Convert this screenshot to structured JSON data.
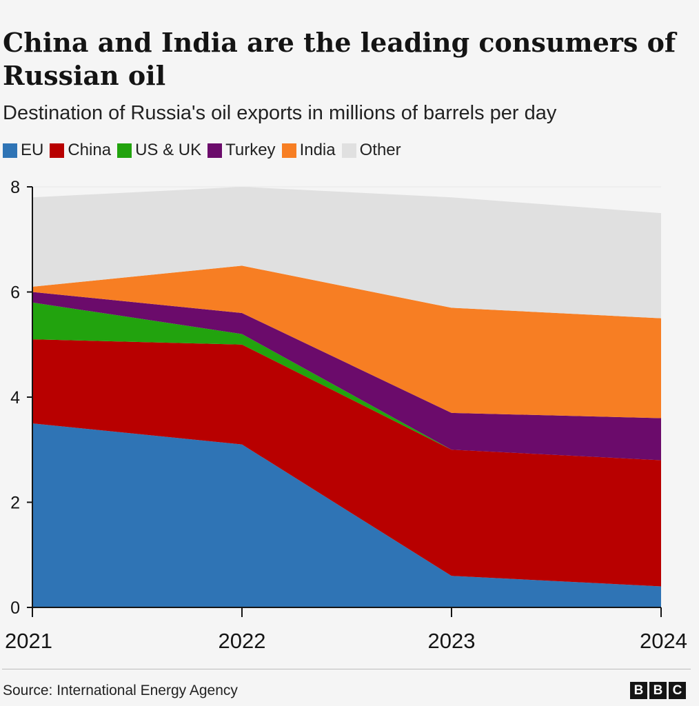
{
  "header": {
    "title": "China and India are the leading consumers of Russian oil",
    "subtitle": "Destination of Russia's oil exports in millions of barrels per day"
  },
  "legend": [
    {
      "label": "EU",
      "color": "#2f74b5"
    },
    {
      "label": "China",
      "color": "#b80000"
    },
    {
      "label": "US & UK",
      "color": "#22a30e"
    },
    {
      "label": "Turkey",
      "color": "#6b0b6b"
    },
    {
      "label": "India",
      "color": "#f77e23"
    },
    {
      "label": "Other",
      "color": "#e0e0e0"
    }
  ],
  "chart_data": {
    "type": "area",
    "stacked": true,
    "title": "China and India are the leading consumers of Russian oil",
    "subtitle": "Destination of Russia's oil exports in millions of barrels per day",
    "x": [
      "2021",
      "2022",
      "2023",
      "2024"
    ],
    "series": [
      {
        "name": "EU",
        "color": "#2f74b5",
        "values": [
          3.5,
          3.1,
          0.6,
          0.4
        ]
      },
      {
        "name": "China",
        "color": "#b80000",
        "values": [
          1.6,
          1.9,
          2.4,
          2.4
        ]
      },
      {
        "name": "US & UK",
        "color": "#22a30e",
        "values": [
          0.7,
          0.2,
          0.0,
          0.0
        ]
      },
      {
        "name": "Turkey",
        "color": "#6b0b6b",
        "values": [
          0.2,
          0.4,
          0.7,
          0.8
        ]
      },
      {
        "name": "India",
        "color": "#f77e23",
        "values": [
          0.1,
          0.9,
          2.0,
          1.9
        ]
      },
      {
        "name": "Other",
        "color": "#e0e0e0",
        "values": [
          1.7,
          1.5,
          2.1,
          2.0
        ]
      }
    ],
    "ylim": [
      0,
      8
    ],
    "yticks": [
      "0",
      "2",
      "4",
      "6",
      "8"
    ],
    "xlabel": "",
    "ylabel": "",
    "grid": true,
    "legend_position": "top-left"
  },
  "footer": {
    "source": "Source: International Energy Agency",
    "logo_letters": [
      "B",
      "B",
      "C"
    ]
  }
}
